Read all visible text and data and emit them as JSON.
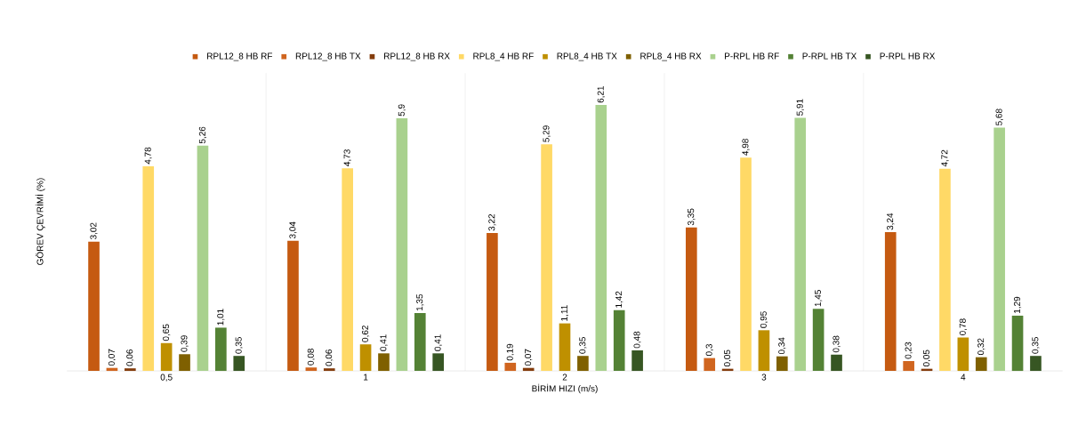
{
  "chart_data": {
    "type": "bar",
    "xlabel": "BİRİM HIZI (m/s)",
    "ylabel": "GÖREV ÇEVRİMİ  (%)",
    "categories": [
      "0,5",
      "1",
      "2",
      "3",
      "4"
    ],
    "series": [
      {
        "name": "RPL12_8 HB RF",
        "color": "#c55a11",
        "values": [
          3.02,
          3.04,
          3.22,
          3.35,
          3.24
        ],
        "value_labels": [
          "3,02",
          "3,04",
          "3,22",
          "3,35",
          "3,24"
        ]
      },
      {
        "name": "RPL12_8 HB TX",
        "color": "#d0651f",
        "values": [
          0.07,
          0.08,
          0.19,
          0.3,
          0.23
        ],
        "value_labels": [
          "0,07",
          "0,08",
          "0,19",
          "0,3",
          "0,23"
        ]
      },
      {
        "name": "RPL12_8 HB RX",
        "color": "#843c0c",
        "values": [
          0.06,
          0.06,
          0.07,
          0.05,
          0.05
        ],
        "value_labels": [
          "0,06",
          "0,06",
          "0,07",
          "0,05",
          "0,05"
        ]
      },
      {
        "name": "RPL8_4 HB RF",
        "color": "#ffd966",
        "values": [
          4.78,
          4.73,
          5.29,
          4.98,
          4.72
        ],
        "value_labels": [
          "4,78",
          "4,73",
          "5,29",
          "4,98",
          "4,72"
        ]
      },
      {
        "name": "RPL8_4 HB TX",
        "color": "#bf9000",
        "values": [
          0.65,
          0.62,
          1.11,
          0.95,
          0.78
        ],
        "value_labels": [
          "0,65",
          "0,62",
          "1,11",
          "0,95",
          "0,78"
        ]
      },
      {
        "name": "RPL8_4 HB RX",
        "color": "#7f6000",
        "values": [
          0.39,
          0.41,
          0.35,
          0.34,
          0.32
        ],
        "value_labels": [
          "0,39",
          "0,41",
          "0,35",
          "0,34",
          "0,32"
        ]
      },
      {
        "name": "P-RPL HB RF",
        "color": "#a9d18e",
        "values": [
          5.26,
          5.9,
          6.21,
          5.91,
          5.68
        ],
        "value_labels": [
          "5,26",
          "5,9",
          "6,21",
          "5,91",
          "5,68"
        ]
      },
      {
        "name": "P-RPL HB TX",
        "color": "#548235",
        "values": [
          1.01,
          1.35,
          1.42,
          1.45,
          1.29
        ],
        "value_labels": [
          "1,01",
          "1,35",
          "1,42",
          "1,45",
          "1,29"
        ]
      },
      {
        "name": "P-RPL HB RX",
        "color": "#375623",
        "values": [
          0.35,
          0.41,
          0.48,
          0.38,
          0.35
        ],
        "value_labels": [
          "0,35",
          "0,41",
          "0,48",
          "0,38",
          "0,35"
        ]
      }
    ],
    "grid": "x",
    "legend": "top"
  }
}
